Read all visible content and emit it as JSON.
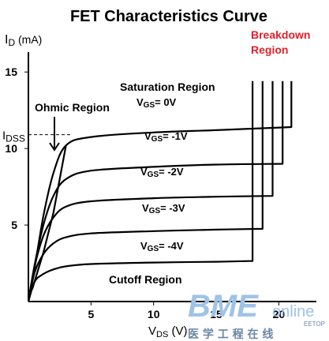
{
  "chart_data": {
    "type": "line",
    "title": "FET Characteristics Curve",
    "ylabel": {
      "main": "I",
      "sub": "D",
      "unit": " (mA)"
    },
    "xlabel": {
      "main": "V",
      "sub": "DS",
      "unit": " (V)"
    },
    "xlim": [
      0,
      23
    ],
    "ylim": [
      0,
      16.3
    ],
    "x_ticks": [
      5,
      10,
      15,
      20
    ],
    "y_ticks": [
      5,
      10,
      15
    ],
    "idss": {
      "main": "I",
      "sub": "DSS",
      "value": 10.9
    },
    "series": [
      {
        "vgs": "0V",
        "label": {
          "main": "V",
          "sub": "GS",
          "value": "= 0V"
        },
        "points": [
          [
            0,
            0
          ],
          [
            0.5,
            2.2
          ],
          [
            1.2,
            5.6
          ],
          [
            2,
            8.4
          ],
          [
            3,
            10.2
          ],
          [
            5,
            10.75
          ],
          [
            10,
            11.05
          ],
          [
            15,
            11.2
          ],
          [
            21,
            11.4
          ]
        ],
        "breakdown_x": 21,
        "breakdown_top": 14.4
      },
      {
        "vgs": "-1V",
        "label": {
          "main": "V",
          "sub": "GS",
          "value": "= -1V"
        },
        "points": [
          [
            0,
            0
          ],
          [
            0.5,
            2.4
          ],
          [
            1.2,
            5.0
          ],
          [
            2,
            6.9
          ],
          [
            3,
            8.0
          ],
          [
            5,
            8.55
          ],
          [
            10,
            8.8
          ],
          [
            15,
            8.95
          ],
          [
            20.3,
            9.0
          ]
        ],
        "breakdown_x": 20.3,
        "breakdown_top": 14.4
      },
      {
        "vgs": "-2V",
        "label": {
          "main": "V",
          "sub": "GS",
          "value": "= -2V"
        },
        "points": [
          [
            0,
            0
          ],
          [
            0.5,
            2.3
          ],
          [
            1.2,
            4.3
          ],
          [
            2,
            5.5
          ],
          [
            3,
            6.2
          ],
          [
            5,
            6.55
          ],
          [
            10,
            6.75
          ],
          [
            15,
            6.85
          ],
          [
            19.5,
            6.9
          ]
        ],
        "breakdown_x": 19.5,
        "breakdown_top": 14.4
      },
      {
        "vgs": "-3V",
        "label": {
          "main": "V",
          "sub": "GS",
          "value": "= -3V"
        },
        "points": [
          [
            0,
            0
          ],
          [
            0.5,
            1.9
          ],
          [
            1.2,
            3.1
          ],
          [
            2,
            3.8
          ],
          [
            3,
            4.2
          ],
          [
            5,
            4.45
          ],
          [
            10,
            4.6
          ],
          [
            15,
            4.7
          ],
          [
            18.7,
            4.75
          ]
        ],
        "breakdown_x": 18.7,
        "breakdown_top": 14.4
      },
      {
        "vgs": "-4V",
        "label": {
          "main": "V",
          "sub": "GS",
          "value": "= -4V"
        },
        "points": [
          [
            0,
            0
          ],
          [
            0.5,
            1.3
          ],
          [
            1.2,
            1.8
          ],
          [
            2,
            2.1
          ],
          [
            3,
            2.3
          ],
          [
            5,
            2.45
          ],
          [
            10,
            2.55
          ],
          [
            15,
            2.6
          ],
          [
            17.9,
            2.65
          ]
        ],
        "breakdown_x": 17.9,
        "breakdown_top": 14.4
      }
    ],
    "ohmic_boundary": [
      [
        0.3,
        0.8
      ],
      [
        1.2,
        3.2
      ],
      [
        2,
        5.8
      ],
      [
        3,
        10.2
      ]
    ],
    "annotations": {
      "ohmic": "Ohmic Region",
      "saturation": "Saturation Region",
      "cutoff": "Cutoff Region",
      "breakdown_line1": "Breakdown",
      "breakdown_line2": "Region"
    },
    "colors": {
      "curves": "#000000",
      "breakdown_text": "#e0202a"
    }
  },
  "watermark": {
    "brand_main": "BME",
    "brand_tail": "online",
    "brand_small": "EETOP",
    "chinese": "医 学 工 程 在 线"
  }
}
